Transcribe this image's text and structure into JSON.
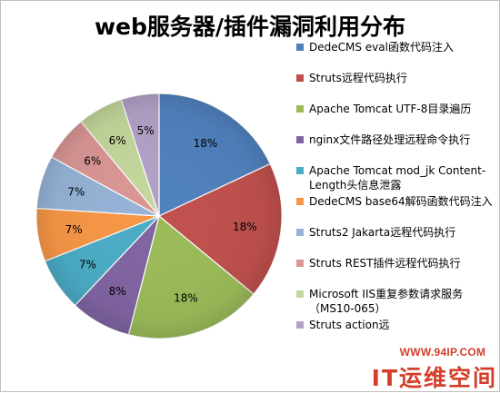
{
  "chart_data": {
    "type": "pie",
    "title": "web服务器/插件漏洞利用分布",
    "legend_position": "right",
    "slices": [
      {
        "label": "DedeCMS eval函数代码注入",
        "value": 18,
        "value_label": "18%",
        "color": "#4f81bd"
      },
      {
        "label": "Struts远程代码执行",
        "value": 18,
        "value_label": "18%",
        "color": "#c0504d"
      },
      {
        "label": "Apache Tomcat UTF-8目录遍历",
        "value": 18,
        "value_label": "18%",
        "color": "#9bbb59"
      },
      {
        "label": "nginx文件路径处理远程命令执行",
        "value": 8,
        "value_label": "8%",
        "color": "#8064a2"
      },
      {
        "label": "Apache Tomcat mod_jk Content-Length头信息泄露",
        "value": 7,
        "value_label": "7%",
        "color": "#4bacc6"
      },
      {
        "label": "DedeCMS base64解码函数代码注入",
        "value": 7,
        "value_label": "7%",
        "color": "#f79646"
      },
      {
        "label": "Struts2 Jakarta远程代码执行",
        "value": 7,
        "value_label": "7%",
        "color": "#95b3d7"
      },
      {
        "label": "Struts REST插件远程代码执行",
        "value": 6,
        "value_label": "6%",
        "color": "#d99694"
      },
      {
        "label": "Microsoft IIS重复参数请求服务（MS10-065）",
        "value": 6,
        "value_label": "6%",
        "color": "#c3d69b"
      },
      {
        "label": "Struts action远",
        "value": 5,
        "value_label": "5%",
        "color": "#b2a1c7"
      }
    ]
  },
  "watermark": {
    "url": "WWW.94IP.COM",
    "name": "IT运维空间"
  }
}
